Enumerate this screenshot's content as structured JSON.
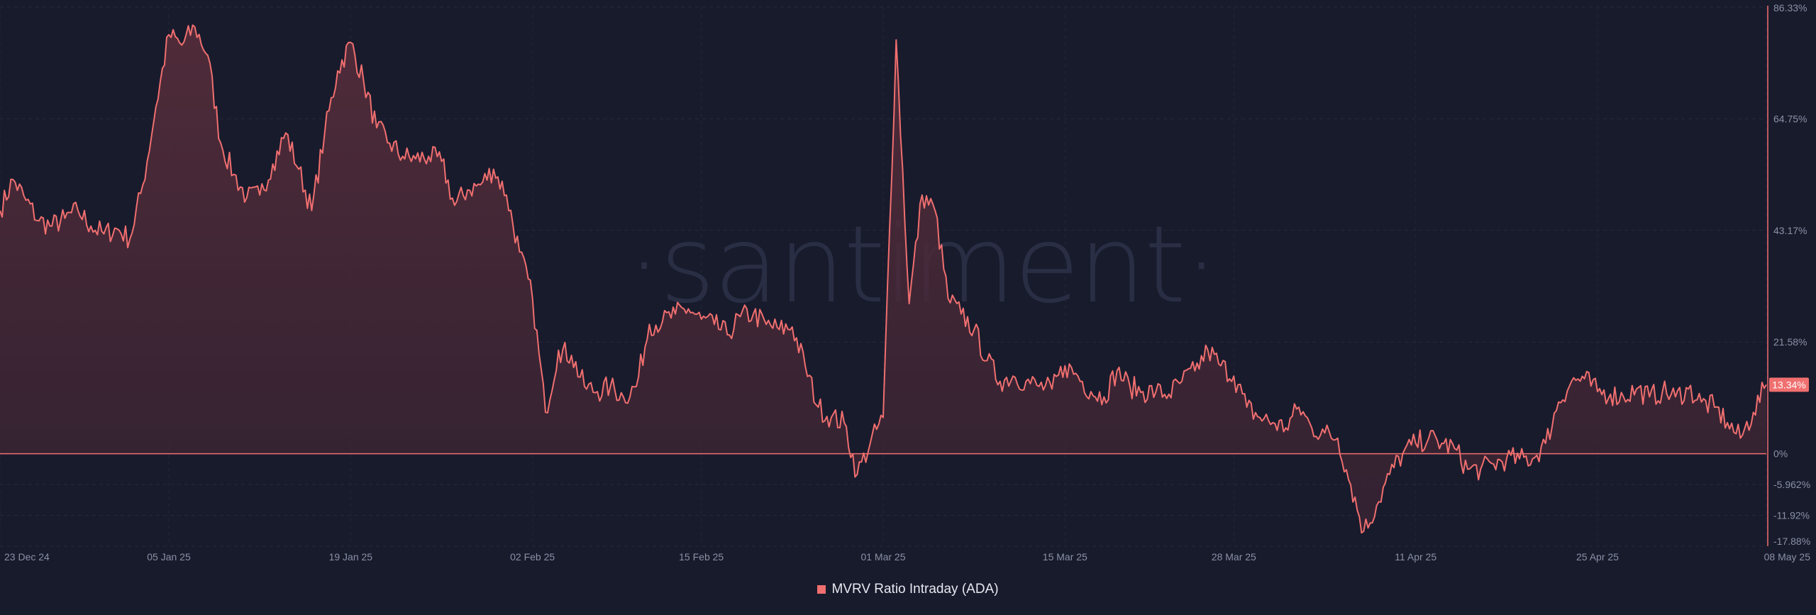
{
  "chart_data": {
    "type": "area",
    "title": "",
    "xlabel": "",
    "ylabel": "",
    "watermark": "·santiment·",
    "x_ticks": [
      "23 Dec 24",
      "05 Jan 25",
      "19 Jan 25",
      "02 Feb 25",
      "15 Feb 25",
      "01 Mar 25",
      "15 Mar 25",
      "28 Mar 25",
      "11 Apr 25",
      "25 Apr 25",
      "08 May 25"
    ],
    "y_ticks": [
      "86.33%",
      "64.75%",
      "43.17%",
      "21.58%",
      "0%",
      "-5.962%",
      "-11.92%",
      "-17.88%"
    ],
    "y_tick_values": [
      86.33,
      64.75,
      43.17,
      21.58,
      0,
      -5.962,
      -11.92,
      -17.88
    ],
    "ylim": [
      -17.88,
      86.33
    ],
    "last_value_label": "13.34%",
    "legend_position": "bottom-center",
    "grid": true,
    "colors": {
      "line": "#f06f6f",
      "fill_top": "#5a2e3c",
      "background": "#181b2c",
      "badge": "#f06f6f"
    },
    "series": [
      {
        "name": "MVRV Ratio Intraday (ADA)",
        "points": [
          [
            "2024-12-23",
            47
          ],
          [
            "2024-12-24",
            53
          ],
          [
            "2024-12-25",
            49
          ],
          [
            "2024-12-26",
            45
          ],
          [
            "2024-12-27",
            44
          ],
          [
            "2024-12-28",
            45.5
          ],
          [
            "2024-12-29",
            47
          ],
          [
            "2024-12-30",
            44
          ],
          [
            "2024-12-31",
            42.5
          ],
          [
            "2025-01-01",
            43.5
          ],
          [
            "2025-01-02",
            41.5
          ],
          [
            "2025-01-03",
            52
          ],
          [
            "2025-01-04",
            67
          ],
          [
            "2025-01-05",
            81
          ],
          [
            "2025-01-06",
            79
          ],
          [
            "2025-01-07",
            82.5
          ],
          [
            "2025-01-08",
            77
          ],
          [
            "2025-01-09",
            60
          ],
          [
            "2025-01-10",
            54
          ],
          [
            "2025-01-11",
            49.5
          ],
          [
            "2025-01-12",
            50
          ],
          [
            "2025-01-13",
            56
          ],
          [
            "2025-01-14",
            62
          ],
          [
            "2025-01-15",
            55
          ],
          [
            "2025-01-16",
            47
          ],
          [
            "2025-01-17",
            62
          ],
          [
            "2025-01-18",
            74
          ],
          [
            "2025-01-19",
            79.5
          ],
          [
            "2025-01-20",
            72
          ],
          [
            "2025-01-21",
            63
          ],
          [
            "2025-01-22",
            60
          ],
          [
            "2025-01-23",
            57.5
          ],
          [
            "2025-01-24",
            57
          ],
          [
            "2025-01-25",
            57.5
          ],
          [
            "2025-01-26",
            56.5
          ],
          [
            "2025-01-27",
            48
          ],
          [
            "2025-01-28",
            51
          ],
          [
            "2025-01-29",
            52
          ],
          [
            "2025-01-30",
            55
          ],
          [
            "2025-01-31",
            50
          ],
          [
            "2025-02-01",
            39
          ],
          [
            "2025-02-02",
            30
          ],
          [
            "2025-02-03",
            8
          ],
          [
            "2025-02-04",
            20
          ],
          [
            "2025-02-05",
            19
          ],
          [
            "2025-02-06",
            13
          ],
          [
            "2025-02-07",
            12
          ],
          [
            "2025-02-08",
            13
          ],
          [
            "2025-02-09",
            11
          ],
          [
            "2025-02-10",
            13
          ],
          [
            "2025-02-11",
            25
          ],
          [
            "2025-02-12",
            25.5
          ],
          [
            "2025-02-13",
            27
          ],
          [
            "2025-02-14",
            28
          ],
          [
            "2025-02-15",
            26
          ],
          [
            "2025-02-16",
            25
          ],
          [
            "2025-02-17",
            23
          ],
          [
            "2025-02-18",
            26.5
          ],
          [
            "2025-02-19",
            27
          ],
          [
            "2025-02-20",
            25
          ],
          [
            "2025-02-21",
            24
          ],
          [
            "2025-02-22",
            24.5
          ],
          [
            "2025-02-23",
            17
          ],
          [
            "2025-02-24",
            9
          ],
          [
            "2025-02-25",
            7
          ],
          [
            "2025-02-26",
            6
          ],
          [
            "2025-02-27",
            -4
          ],
          [
            "2025-02-28",
            2
          ],
          [
            "2025-03-01",
            7
          ],
          [
            "2025-03-02",
            80
          ],
          [
            "2025-03-03",
            29
          ],
          [
            "2025-03-04",
            50
          ],
          [
            "2025-03-05",
            47
          ],
          [
            "2025-03-06",
            30
          ],
          [
            "2025-03-07",
            27
          ],
          [
            "2025-03-08",
            24
          ],
          [
            "2025-03-09",
            18
          ],
          [
            "2025-03-10",
            14
          ],
          [
            "2025-03-11",
            15
          ],
          [
            "2025-03-12",
            14
          ],
          [
            "2025-03-13",
            13
          ],
          [
            "2025-03-14",
            12.5
          ],
          [
            "2025-03-15",
            17
          ],
          [
            "2025-03-16",
            15
          ],
          [
            "2025-03-17",
            12
          ],
          [
            "2025-03-18",
            11
          ],
          [
            "2025-03-19",
            16
          ],
          [
            "2025-03-20",
            13
          ],
          [
            "2025-03-21",
            12
          ],
          [
            "2025-03-22",
            12
          ],
          [
            "2025-03-23",
            11.5
          ],
          [
            "2025-03-24",
            14
          ],
          [
            "2025-03-25",
            16
          ],
          [
            "2025-03-26",
            20
          ],
          [
            "2025-03-27",
            17
          ],
          [
            "2025-03-28",
            15
          ],
          [
            "2025-03-29",
            9
          ],
          [
            "2025-03-30",
            7
          ],
          [
            "2025-03-31",
            6
          ],
          [
            "2025-04-01",
            5
          ],
          [
            "2025-04-02",
            9
          ],
          [
            "2025-04-03",
            5
          ],
          [
            "2025-04-04",
            4
          ],
          [
            "2025-04-05",
            3
          ],
          [
            "2025-04-06",
            -6
          ],
          [
            "2025-04-07",
            -15
          ],
          [
            "2025-04-08",
            -10
          ],
          [
            "2025-04-09",
            -4
          ],
          [
            "2025-04-10",
            0
          ],
          [
            "2025-04-11",
            2
          ],
          [
            "2025-04-12",
            3
          ],
          [
            "2025-04-13",
            2
          ],
          [
            "2025-04-14",
            1
          ],
          [
            "2025-04-15",
            -3
          ],
          [
            "2025-04-16",
            -3
          ],
          [
            "2025-04-17",
            -2
          ],
          [
            "2025-04-18",
            -1
          ],
          [
            "2025-04-19",
            -1
          ],
          [
            "2025-04-20",
            -1
          ],
          [
            "2025-04-21",
            2
          ],
          [
            "2025-04-22",
            10
          ],
          [
            "2025-04-23",
            14
          ],
          [
            "2025-04-24",
            14.5
          ],
          [
            "2025-04-25",
            12
          ],
          [
            "2025-04-26",
            11.5
          ],
          [
            "2025-04-27",
            11
          ],
          [
            "2025-04-28",
            12.5
          ],
          [
            "2025-04-29",
            11
          ],
          [
            "2025-04-30",
            12
          ],
          [
            "2025-05-01",
            11
          ],
          [
            "2025-05-02",
            12.5
          ],
          [
            "2025-05-03",
            10
          ],
          [
            "2025-05-04",
            9
          ],
          [
            "2025-05-05",
            6
          ],
          [
            "2025-05-06",
            3
          ],
          [
            "2025-05-07",
            8
          ],
          [
            "2025-05-08",
            13.34
          ]
        ]
      }
    ]
  }
}
